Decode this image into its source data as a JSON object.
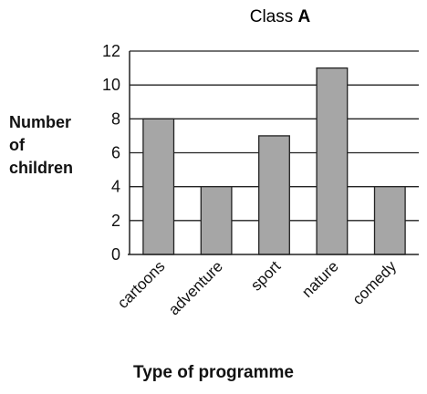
{
  "chart_data": {
    "type": "bar",
    "title_prefix": "Class ",
    "title_emphasis": "A",
    "categories": [
      "cartoons",
      "adventure",
      "sport",
      "nature",
      "comedy"
    ],
    "values": [
      8,
      4,
      7,
      11,
      4
    ],
    "ylabel_lines": [
      "Number",
      "of",
      "children"
    ],
    "xlabel": "Type of programme",
    "ylim": [
      0,
      12
    ],
    "yticks": [
      0,
      2,
      4,
      6,
      8,
      10,
      12
    ],
    "grid": true,
    "bar_color": "#a6a6a6",
    "grid_color": "#222222"
  }
}
